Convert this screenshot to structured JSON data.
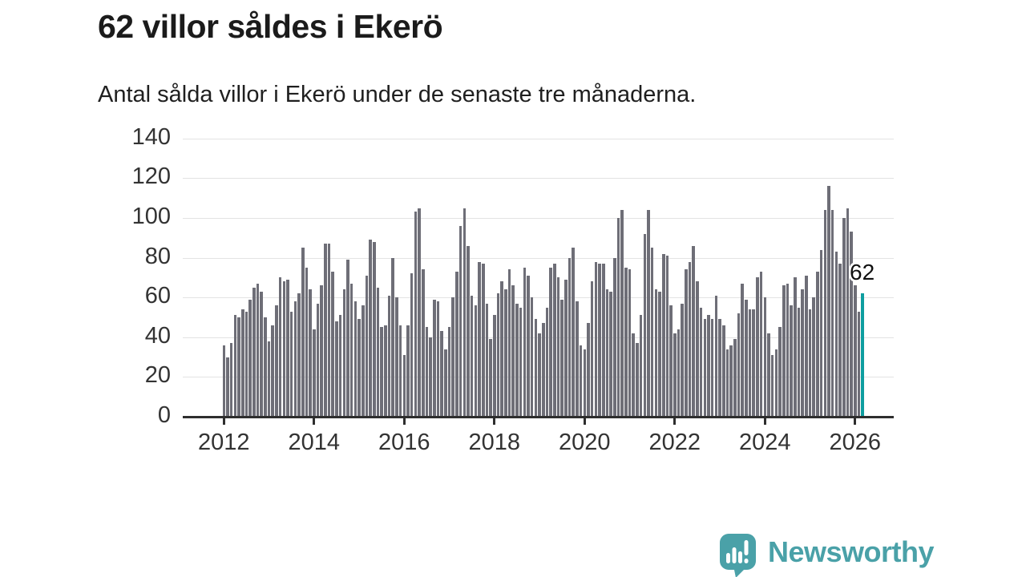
{
  "title": "62 villor såldes i Ekerö",
  "subtitle": "Antal sålda villor i Ekerö under de senaste tre månaderna.",
  "annotation": {
    "label": "62"
  },
  "branding": {
    "name": "Newsworthy",
    "icon": "newsworthy-speech-bubble-barchart-icon"
  },
  "colors": {
    "background": "#ffffff",
    "bar": "#6e6e77",
    "highlight": "#0e9ea0",
    "grid": "#e3e3e3",
    "axis": "#2e2e2e",
    "text": "#1b1b1b",
    "tick_label": "#333333",
    "brand": "#4aa1a8"
  },
  "chart_data": {
    "type": "bar",
    "title": "62 villor såldes i Ekerö",
    "subtitle": "Antal sålda villor i Ekerö under de senaste tre månaderna.",
    "xlabel": "",
    "ylabel": "",
    "frequency": "monthly",
    "x_start": "2012-01",
    "x_end": "2026-03",
    "ylim": [
      0,
      140
    ],
    "y_ticks": [
      0,
      20,
      40,
      60,
      80,
      100,
      120,
      140
    ],
    "x_tick_labels": [
      "2012",
      "2014",
      "2016",
      "2018",
      "2020",
      "2022",
      "2024",
      "2026"
    ],
    "x_tick_month_interval": 24,
    "grid": "horizontal",
    "legend": "none",
    "values": [
      36,
      30,
      37,
      51,
      50,
      54,
      53,
      59,
      65,
      67,
      63,
      50,
      38,
      46,
      56,
      70,
      68,
      69,
      53,
      58,
      62,
      85,
      75,
      64,
      44,
      57,
      66,
      87,
      87,
      73,
      48,
      51,
      64,
      79,
      67,
      58,
      49,
      56,
      71,
      89,
      88,
      65,
      45,
      46,
      61,
      80,
      60,
      46,
      31,
      46,
      72,
      103,
      105,
      74,
      45,
      40,
      59,
      58,
      43,
      34,
      45,
      60,
      73,
      96,
      105,
      86,
      61,
      56,
      78,
      77,
      57,
      39,
      51,
      62,
      68,
      64,
      74,
      66,
      57,
      55,
      75,
      71,
      60,
      49,
      42,
      47,
      55,
      75,
      77,
      70,
      59,
      69,
      80,
      85,
      58,
      36,
      34,
      47,
      68,
      78,
      77,
      77,
      64,
      63,
      80,
      100,
      104,
      75,
      74,
      42,
      37,
      51,
      92,
      104,
      85,
      64,
      63,
      82,
      81,
      56,
      42,
      44,
      57,
      74,
      78,
      86,
      68,
      55,
      49,
      51,
      49,
      61,
      49,
      46,
      34,
      36,
      39,
      52,
      67,
      59,
      54,
      54,
      70,
      73,
      60,
      42,
      31,
      34,
      45,
      66,
      67,
      56,
      70,
      55,
      64,
      71,
      54,
      60,
      73,
      84,
      104,
      116,
      104,
      83,
      77,
      100,
      105,
      93,
      66,
      53,
      62
    ],
    "highlight_last_value": 62,
    "annotation_on_last_bar": "62"
  }
}
